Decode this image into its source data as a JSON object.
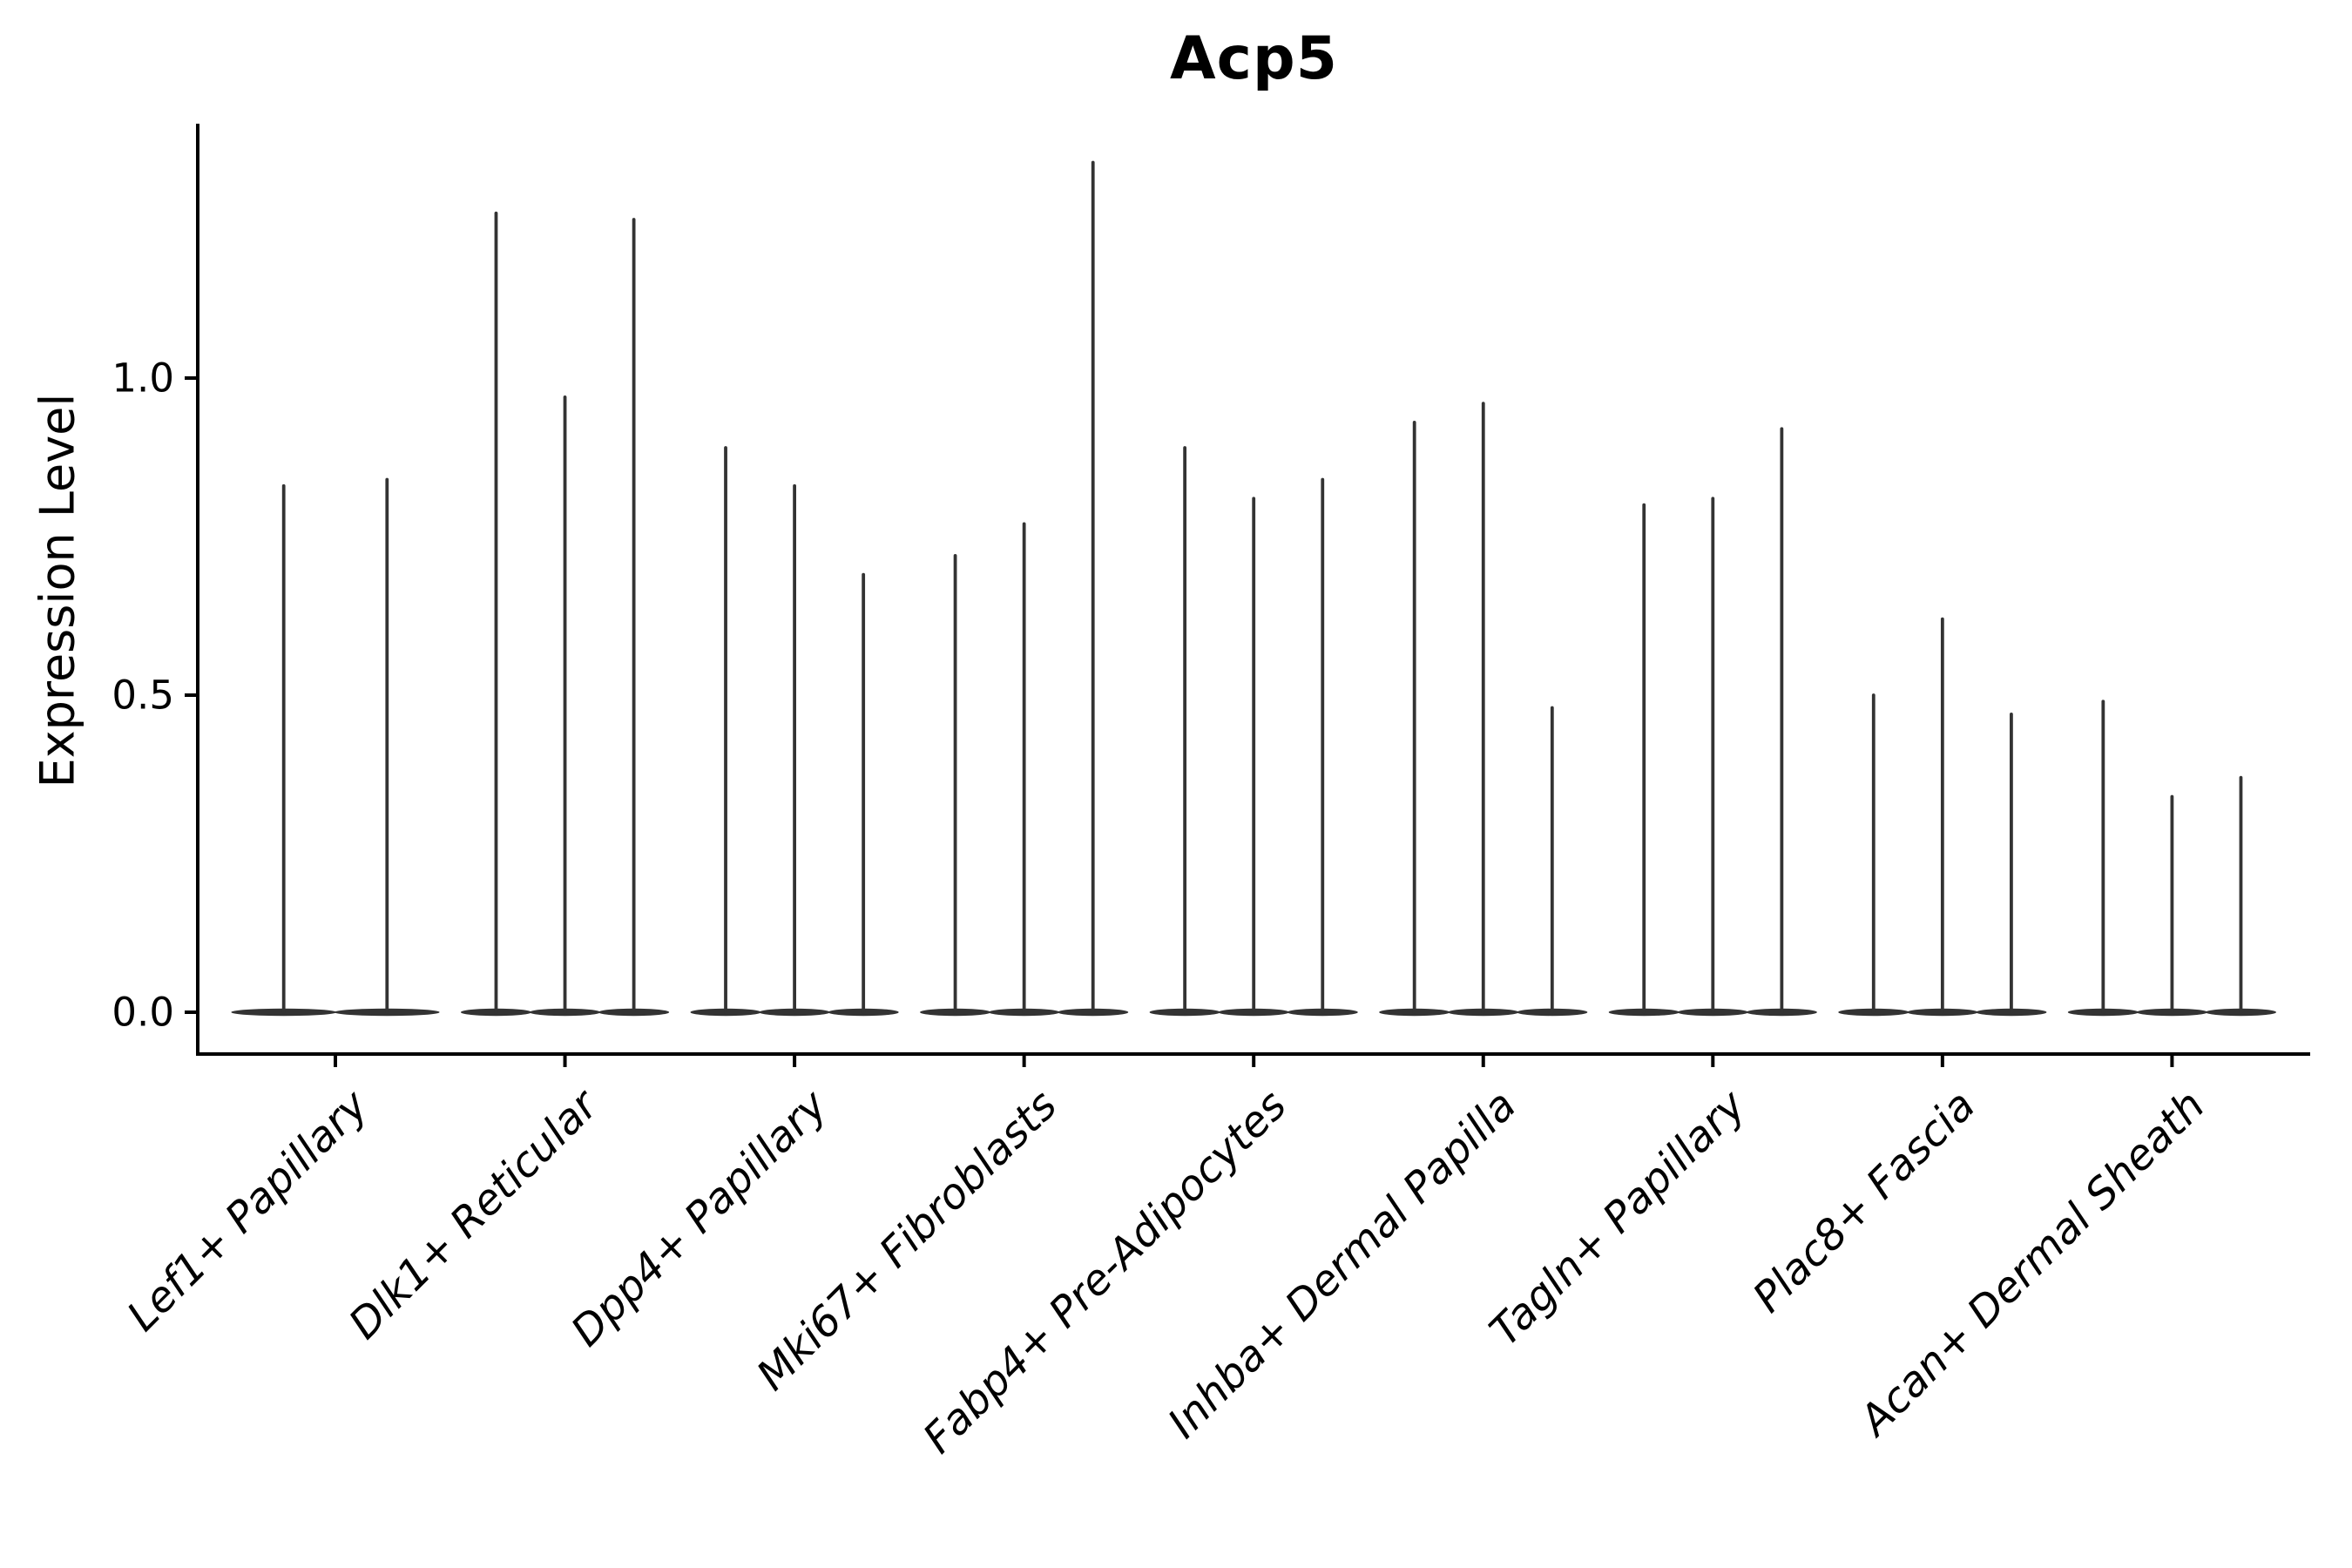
{
  "chart_data": {
    "type": "violin",
    "title": "Acp5",
    "ylabel": "Expression Level",
    "xlabel": "",
    "grid": false,
    "legend": null,
    "background_color": "#ffffff",
    "violin_color": "#333333",
    "axis_color": "#000000",
    "ylim": [
      -0.07,
      1.4
    ],
    "yticks": [
      0.0,
      0.5,
      1.0
    ],
    "ytick_labels": [
      "0.0",
      "0.5",
      "1.0"
    ],
    "categories": [
      "Lef1+ Papillary",
      "Dlk1+ Reticular",
      "Dpp4+ Papillary",
      "Mki67+ Fibroblasts",
      "Fabp4+ Pre-Adipocytes",
      "Inhba+ Dermal Papilla",
      "Tagln+ Papillary",
      "Plac8+ Fascia",
      "Acan+ Dermal Sheath"
    ],
    "series": [
      {
        "category": "Lef1+ Papillary",
        "spike_maxima": [
          0.83,
          0.84
        ]
      },
      {
        "category": "Dlk1+ Reticular",
        "spike_maxima": [
          1.26,
          0.97,
          1.25
        ]
      },
      {
        "category": "Dpp4+ Papillary",
        "spike_maxima": [
          0.89,
          0.83,
          0.69
        ]
      },
      {
        "category": "Mki67+ Fibroblasts",
        "spike_maxima": [
          0.72,
          0.77,
          1.34
        ]
      },
      {
        "category": "Fabp4+ Pre-Adipocytes",
        "spike_maxima": [
          0.89,
          0.81,
          0.84
        ]
      },
      {
        "category": "Inhba+ Dermal Papilla",
        "spike_maxima": [
          0.93,
          0.96,
          0.48
        ]
      },
      {
        "category": "Tagln+ Papillary",
        "spike_maxima": [
          0.8,
          0.81,
          0.92
        ]
      },
      {
        "category": "Plac8+ Fascia",
        "spike_maxima": [
          0.5,
          0.62,
          0.47
        ]
      },
      {
        "category": "Acan+ Dermal Sheath",
        "spike_maxima": [
          0.49,
          0.34,
          0.37
        ]
      }
    ],
    "description": "Violin plot of Acp5 expression: each cell-type category shows 2-3 violins collapsed flat at 0 with thin spikes reaching the maximum expression value."
  }
}
